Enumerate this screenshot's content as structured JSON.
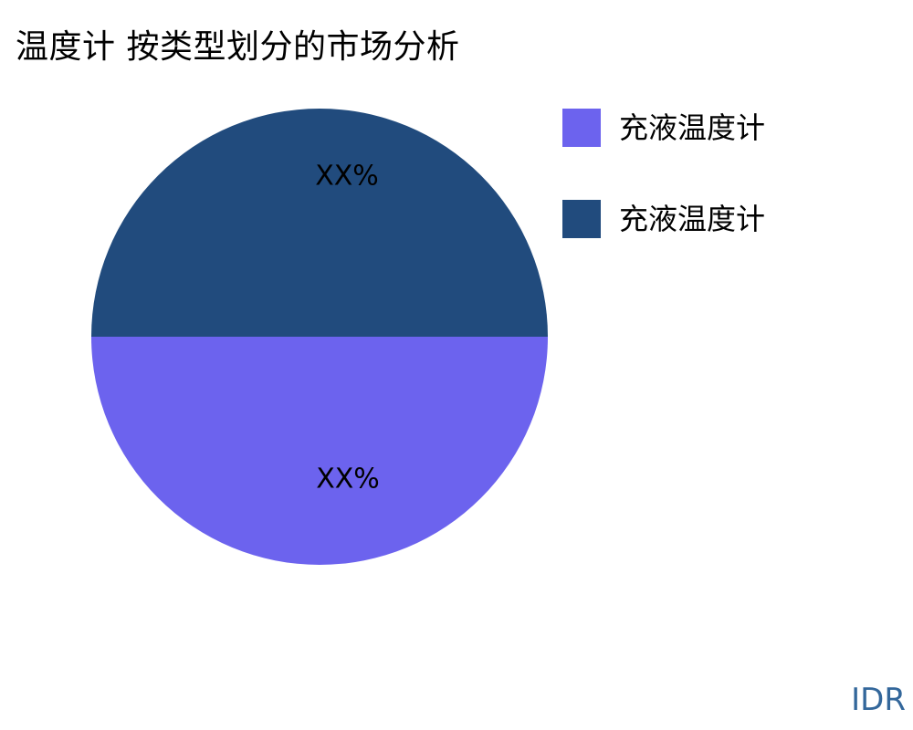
{
  "title": "温度计 按类型划分的市场分析",
  "chart_data": {
    "type": "pie",
    "title": "温度计 按类型划分的市场分析",
    "legend_position": "right",
    "total": 100,
    "slices": [
      {
        "label": "充液温度计",
        "value": 50,
        "percent_label": "XX%",
        "color": "#6C63EE",
        "half": "bottom"
      },
      {
        "label": "充液温度计",
        "value": 50,
        "percent_label": "XX%",
        "color": "#214B7D",
        "half": "top"
      }
    ]
  },
  "legend": {
    "items": [
      {
        "label": "充液温度计",
        "swatch_color": "#6C63EE"
      },
      {
        "label": "充液温度计",
        "swatch_color": "#214B7D"
      }
    ]
  },
  "footer": {
    "currency": "IDR",
    "color": "#33679B"
  }
}
